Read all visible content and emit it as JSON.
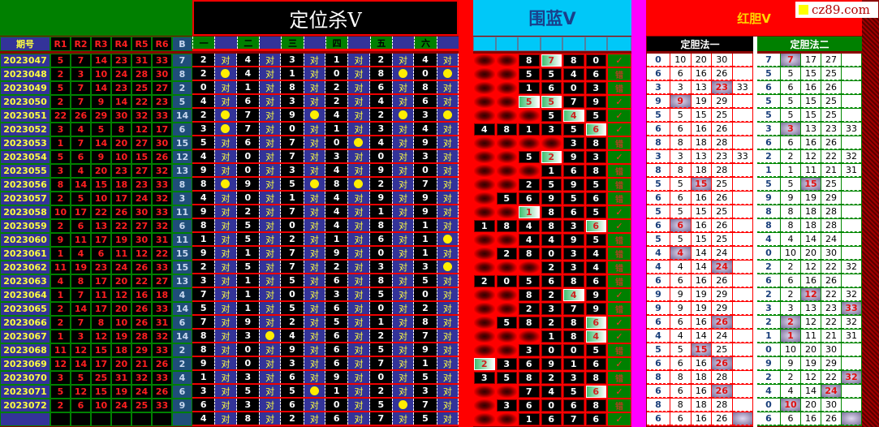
{
  "logo": {
    "text": "cz89.com"
  },
  "sections": {
    "kill_title": "定位杀V",
    "blue_title": "围蓝V",
    "red_title": "红胆V",
    "red_method1": "定胆法一",
    "red_method2": "定胆法二"
  },
  "headers": {
    "left": [
      "期号",
      "R1",
      "R2",
      "R3",
      "R4",
      "R5",
      "R6",
      "B"
    ],
    "kill": [
      "一",
      "",
      "二",
      "",
      "三",
      "",
      "四",
      "",
      "五",
      "",
      "六",
      ""
    ]
  },
  "colors": {
    "period_bg": "#333399",
    "period_text": "#ffff40",
    "red_number": "#ff2020",
    "kill_bg": "#000000",
    "mark_bg": "#333399",
    "blue_header": "#00c8f8",
    "hit_dot": "#ffee00",
    "result_bg": "#008000"
  },
  "rows": [
    {
      "p": "2023047",
      "r": [
        5,
        7,
        14,
        23,
        31,
        33
      ],
      "b": 7,
      "k": [
        2,
        4,
        3,
        1,
        2,
        4
      ],
      "m": [
        "对",
        "对",
        "对",
        "对",
        "对",
        "对"
      ],
      "blue": [
        null,
        null,
        8,
        7,
        8,
        0
      ],
      "bh": 3,
      "res": "✓",
      "d1": 0,
      "n1": [
        10,
        20,
        30,
        null
      ],
      "h1": -1,
      "d2": 7,
      "n2": [
        7,
        17,
        27,
        null
      ],
      "h2": 0
    },
    {
      "p": "2023048",
      "r": [
        2,
        3,
        10,
        24,
        28,
        30
      ],
      "b": 8,
      "k": [
        2,
        4,
        1,
        0,
        8,
        0
      ],
      "m": [
        "●",
        "对",
        "对",
        "对",
        "●",
        "●"
      ],
      "blue": [
        null,
        null,
        5,
        5,
        4,
        6
      ],
      "bh": -1,
      "res": "错",
      "d1": 6,
      "n1": [
        6,
        16,
        26,
        null
      ],
      "h1": -1,
      "d2": 5,
      "n2": [
        5,
        15,
        25,
        null
      ],
      "h2": -1
    },
    {
      "p": "2023049",
      "r": [
        5,
        7,
        14,
        23,
        25,
        27
      ],
      "b": 2,
      "k": [
        0,
        1,
        8,
        2,
        6,
        8
      ],
      "m": [
        "对",
        "对",
        "对",
        "对",
        "对",
        "对"
      ],
      "blue": [
        null,
        null,
        1,
        6,
        0,
        3
      ],
      "bh": -1,
      "res": "错",
      "d1": 3,
      "n1": [
        3,
        13,
        23,
        33
      ],
      "h1": 2,
      "d2": 6,
      "n2": [
        6,
        16,
        26,
        null
      ],
      "h2": -1
    },
    {
      "p": "2023050",
      "r": [
        2,
        7,
        9,
        14,
        22,
        23
      ],
      "b": 5,
      "k": [
        4,
        6,
        3,
        2,
        4,
        6
      ],
      "m": [
        "对",
        "对",
        "对",
        "对",
        "对",
        "对"
      ],
      "blue": [
        null,
        null,
        5,
        5,
        7,
        9
      ],
      "bh": [
        2,
        3
      ],
      "res": "✓",
      "d1": 9,
      "n1": [
        9,
        19,
        29,
        null
      ],
      "h1": 0,
      "d2": 5,
      "n2": [
        5,
        15,
        25,
        null
      ],
      "h2": -1
    },
    {
      "p": "2023051",
      "r": [
        22,
        26,
        29,
        30,
        32,
        33
      ],
      "b": 14,
      "k": [
        2,
        7,
        9,
        4,
        2,
        3
      ],
      "m": [
        "●",
        "对",
        "●",
        "对",
        "●",
        "●"
      ],
      "blue": [
        null,
        null,
        null,
        5,
        4,
        5
      ],
      "bh": 4,
      "res": "✓",
      "d1": 5,
      "n1": [
        5,
        15,
        25,
        null
      ],
      "h1": -1,
      "d2": 5,
      "n2": [
        5,
        15,
        25,
        null
      ],
      "h2": -1
    },
    {
      "p": "2023052",
      "r": [
        3,
        4,
        5,
        8,
        12,
        17
      ],
      "b": 6,
      "k": [
        3,
        7,
        0,
        1,
        3,
        4
      ],
      "m": [
        "●",
        "对",
        "对",
        "对",
        "对",
        "对"
      ],
      "blue": [
        4,
        8,
        1,
        3,
        5,
        6
      ],
      "bh": 5,
      "res": "✓",
      "d1": 6,
      "n1": [
        6,
        16,
        26,
        null
      ],
      "h1": -1,
      "d2": 3,
      "n2": [
        3,
        13,
        23,
        33
      ],
      "h2": 0
    },
    {
      "p": "2023053",
      "r": [
        1,
        7,
        14,
        20,
        27,
        30
      ],
      "b": 15,
      "k": [
        5,
        6,
        7,
        0,
        4,
        9
      ],
      "m": [
        "对",
        "对",
        "对",
        "●",
        "对",
        "对"
      ],
      "blue": [
        null,
        null,
        null,
        null,
        3,
        8
      ],
      "bh": -1,
      "res": "错",
      "d1": 8,
      "n1": [
        8,
        18,
        28,
        null
      ],
      "h1": -1,
      "d2": 6,
      "n2": [
        6,
        16,
        26,
        null
      ],
      "h2": -1
    },
    {
      "p": "2023054",
      "r": [
        5,
        6,
        9,
        10,
        15,
        26
      ],
      "b": 12,
      "k": [
        4,
        0,
        7,
        3,
        0,
        3
      ],
      "m": [
        "对",
        "对",
        "对",
        "对",
        "对",
        "对"
      ],
      "blue": [
        null,
        null,
        5,
        2,
        9,
        3
      ],
      "bh": 3,
      "res": "✓",
      "d1": 3,
      "n1": [
        3,
        13,
        23,
        33
      ],
      "h1": -1,
      "d2": 2,
      "n2": [
        2,
        12,
        22,
        32
      ],
      "h2": -1
    },
    {
      "p": "2023055",
      "r": [
        3,
        4,
        20,
        23,
        27,
        32
      ],
      "b": 13,
      "k": [
        9,
        0,
        3,
        4,
        9,
        0
      ],
      "m": [
        "对",
        "对",
        "对",
        "对",
        "对",
        "对"
      ],
      "blue": [
        null,
        null,
        null,
        1,
        6,
        8
      ],
      "bh": -1,
      "res": "错",
      "d1": 8,
      "n1": [
        8,
        18,
        28,
        null
      ],
      "h1": -1,
      "d2": 1,
      "n2": [
        1,
        11,
        21,
        31
      ],
      "h2": -1
    },
    {
      "p": "2023056",
      "r": [
        8,
        14,
        15,
        18,
        23,
        33
      ],
      "b": 8,
      "k": [
        8,
        9,
        5,
        8,
        2,
        7
      ],
      "m": [
        "●",
        "对",
        "●",
        "●",
        "对",
        "对"
      ],
      "blue": [
        null,
        null,
        2,
        5,
        9,
        5
      ],
      "bh": -1,
      "res": "错",
      "d1": 5,
      "n1": [
        5,
        15,
        25,
        null
      ],
      "h1": 1,
      "d2": 5,
      "n2": [
        5,
        15,
        25,
        null
      ],
      "h2": 1
    },
    {
      "p": "2023057",
      "r": [
        2,
        5,
        10,
        17,
        24,
        32
      ],
      "b": 3,
      "k": [
        4,
        0,
        1,
        4,
        9,
        9
      ],
      "m": [
        "对",
        "对",
        "对",
        "对",
        "对",
        "对"
      ],
      "blue": [
        null,
        5,
        6,
        9,
        5,
        6
      ],
      "bh": -1,
      "res": "错",
      "d1": 6,
      "n1": [
        6,
        16,
        26,
        null
      ],
      "h1": -1,
      "d2": 9,
      "n2": [
        9,
        19,
        29,
        null
      ],
      "h2": -1
    },
    {
      "p": "2023058",
      "r": [
        10,
        17,
        22,
        26,
        30,
        33
      ],
      "b": 11,
      "k": [
        9,
        2,
        7,
        4,
        1,
        9
      ],
      "m": [
        "对",
        "对",
        "对",
        "对",
        "对",
        "对"
      ],
      "blue": [
        null,
        null,
        1,
        8,
        6,
        5
      ],
      "bh": 2,
      "res": "✓",
      "d1": 5,
      "n1": [
        5,
        15,
        25,
        null
      ],
      "h1": -1,
      "d2": 8,
      "n2": [
        8,
        18,
        28,
        null
      ],
      "h2": -1
    },
    {
      "p": "2023059",
      "r": [
        2,
        6,
        13,
        22,
        27,
        32
      ],
      "b": 6,
      "k": [
        8,
        5,
        0,
        4,
        8,
        1
      ],
      "m": [
        "对",
        "对",
        "对",
        "对",
        "对",
        "对"
      ],
      "blue": [
        1,
        8,
        4,
        8,
        3,
        6
      ],
      "bh": 5,
      "res": "✓",
      "d1": 6,
      "n1": [
        6,
        16,
        26,
        null
      ],
      "h1": 0,
      "d2": 8,
      "n2": [
        8,
        18,
        28,
        null
      ],
      "h2": -1
    },
    {
      "p": "2023060",
      "r": [
        9,
        11,
        17,
        19,
        30,
        31
      ],
      "b": 11,
      "k": [
        1,
        5,
        2,
        1,
        6,
        1
      ],
      "m": [
        "对",
        "对",
        "对",
        "对",
        "对",
        "●"
      ],
      "blue": [
        null,
        null,
        4,
        4,
        9,
        5
      ],
      "bh": -1,
      "res": "错",
      "d1": 5,
      "n1": [
        5,
        15,
        25,
        null
      ],
      "h1": -1,
      "d2": 4,
      "n2": [
        4,
        14,
        24,
        null
      ],
      "h2": -1
    },
    {
      "p": "2023061",
      "r": [
        1,
        4,
        6,
        11,
        12,
        22
      ],
      "b": 15,
      "k": [
        9,
        1,
        7,
        9,
        0,
        1
      ],
      "m": [
        "对",
        "对",
        "对",
        "对",
        "对",
        "对"
      ],
      "blue": [
        null,
        2,
        8,
        0,
        3,
        4
      ],
      "bh": -1,
      "res": "错",
      "d1": 4,
      "n1": [
        4,
        14,
        24,
        null
      ],
      "h1": 0,
      "d2": 0,
      "n2": [
        10,
        20,
        30,
        null
      ],
      "h2": -1
    },
    {
      "p": "2023062",
      "r": [
        11,
        19,
        23,
        24,
        26,
        33
      ],
      "b": 15,
      "k": [
        2,
        5,
        7,
        2,
        3,
        3
      ],
      "m": [
        "对",
        "对",
        "对",
        "对",
        "对",
        "●"
      ],
      "blue": [
        null,
        null,
        null,
        2,
        3,
        4
      ],
      "bh": -1,
      "res": "错",
      "d1": 4,
      "n1": [
        4,
        14,
        24,
        null
      ],
      "h1": 2,
      "d2": 2,
      "n2": [
        2,
        12,
        22,
        32
      ],
      "h2": -1
    },
    {
      "p": "2023063",
      "r": [
        4,
        8,
        17,
        20,
        22,
        27
      ],
      "b": 13,
      "k": [
        3,
        1,
        5,
        6,
        8,
        5
      ],
      "m": [
        "对",
        "对",
        "对",
        "对",
        "对",
        "对"
      ],
      "blue": [
        2,
        0,
        5,
        6,
        8,
        6
      ],
      "bh": -1,
      "res": "错",
      "d1": 6,
      "n1": [
        6,
        16,
        26,
        null
      ],
      "h1": -1,
      "d2": 6,
      "n2": [
        6,
        16,
        26,
        null
      ],
      "h2": -1
    },
    {
      "p": "2023064",
      "r": [
        1,
        7,
        11,
        12,
        16,
        18
      ],
      "b": 4,
      "k": [
        7,
        1,
        0,
        3,
        5,
        0
      ],
      "m": [
        "对",
        "对",
        "对",
        "对",
        "对",
        "对"
      ],
      "blue": [
        null,
        null,
        8,
        2,
        4,
        9
      ],
      "bh": 4,
      "res": "✓",
      "d1": 9,
      "n1": [
        9,
        19,
        29,
        null
      ],
      "h1": -1,
      "d2": 2,
      "n2": [
        2,
        12,
        22,
        32
      ],
      "h2": 1
    },
    {
      "p": "2023065",
      "r": [
        2,
        14,
        17,
        20,
        26,
        33
      ],
      "b": 14,
      "k": [
        5,
        1,
        5,
        6,
        0,
        2
      ],
      "m": [
        "对",
        "对",
        "对",
        "对",
        "对",
        "对"
      ],
      "blue": [
        null,
        null,
        2,
        3,
        7,
        9
      ],
      "bh": -1,
      "res": "错",
      "d1": 9,
      "n1": [
        9,
        19,
        29,
        null
      ],
      "h1": -1,
      "d2": 3,
      "n2": [
        3,
        13,
        23,
        33
      ],
      "h2": 3
    },
    {
      "p": "2023066",
      "r": [
        2,
        7,
        8,
        10,
        26,
        31
      ],
      "b": 6,
      "k": [
        7,
        9,
        2,
        5,
        1,
        8
      ],
      "m": [
        "对",
        "对",
        "对",
        "对",
        "对",
        "对"
      ],
      "blue": [
        null,
        5,
        8,
        2,
        8,
        6
      ],
      "bh": 5,
      "res": "✓",
      "d1": 6,
      "n1": [
        6,
        16,
        26,
        null
      ],
      "h1": 2,
      "d2": 2,
      "n2": [
        2,
        12,
        22,
        32
      ],
      "h2": 0
    },
    {
      "p": "2023067",
      "r": [
        1,
        3,
        12,
        19,
        28,
        32
      ],
      "b": 14,
      "k": [
        8,
        3,
        4,
        6,
        2,
        7
      ],
      "m": [
        "对",
        "●",
        "对",
        "对",
        "对",
        "对"
      ],
      "blue": [
        null,
        null,
        null,
        1,
        8,
        4
      ],
      "bh": 5,
      "res": "✓",
      "d1": 4,
      "n1": [
        4,
        14,
        24,
        null
      ],
      "h1": -1,
      "d2": 1,
      "n2": [
        1,
        11,
        21,
        31
      ],
      "h2": 0
    },
    {
      "p": "2023068",
      "r": [
        11,
        12,
        15,
        18,
        29,
        33
      ],
      "b": 2,
      "k": [
        8,
        0,
        9,
        6,
        5,
        9
      ],
      "m": [
        "对",
        "对",
        "对",
        "对",
        "对",
        "对"
      ],
      "blue": [
        null,
        null,
        3,
        0,
        0,
        5
      ],
      "bh": -1,
      "res": "错",
      "d1": 5,
      "n1": [
        5,
        15,
        25,
        null
      ],
      "h1": 1,
      "d2": 0,
      "n2": [
        10,
        20,
        30,
        null
      ],
      "h2": -1
    },
    {
      "p": "2023069",
      "r": [
        12,
        14,
        17,
        20,
        21,
        26
      ],
      "b": 2,
      "k": [
        9,
        0,
        3,
        6,
        7,
        1
      ],
      "m": [
        "对",
        "对",
        "对",
        "对",
        "对",
        "对"
      ],
      "blue": [
        2,
        3,
        6,
        9,
        1,
        6
      ],
      "bh": 0,
      "res": "✓",
      "d1": 6,
      "n1": [
        6,
        16,
        26,
        null
      ],
      "h1": 2,
      "d2": 9,
      "n2": [
        9,
        19,
        29,
        null
      ],
      "h2": -1
    },
    {
      "p": "2023070",
      "r": [
        3,
        5,
        25,
        31,
        32,
        33
      ],
      "b": 4,
      "k": [
        1,
        3,
        6,
        9,
        0,
        5
      ],
      "m": [
        "对",
        "对",
        "对",
        "对",
        "对",
        "对"
      ],
      "blue": [
        3,
        5,
        8,
        2,
        3,
        8
      ],
      "bh": -1,
      "res": "错",
      "d1": 8,
      "n1": [
        8,
        18,
        28,
        null
      ],
      "h1": -1,
      "d2": 2,
      "n2": [
        2,
        12,
        22,
        32
      ],
      "h2": 3
    },
    {
      "p": "2023071",
      "r": [
        5,
        12,
        15,
        19,
        24,
        26
      ],
      "b": 6,
      "k": [
        3,
        5,
        5,
        1,
        2,
        3
      ],
      "m": [
        "对",
        "对",
        "●",
        "对",
        "对",
        "对"
      ],
      "blue": [
        null,
        null,
        7,
        4,
        5,
        6
      ],
      "bh": 5,
      "res": "✓",
      "d1": 6,
      "n1": [
        6,
        16,
        26,
        null
      ],
      "h1": 2,
      "d2": 4,
      "n2": [
        4,
        14,
        24,
        null
      ],
      "h2": 2
    },
    {
      "p": "2023072",
      "r": [
        2,
        6,
        10,
        24,
        25,
        33
      ],
      "b": 9,
      "k": [
        6,
        3,
        6,
        0,
        5,
        7
      ],
      "m": [
        "对",
        "对",
        "对",
        "对",
        "●",
        "对"
      ],
      "blue": [
        null,
        3,
        6,
        0,
        6,
        8
      ],
      "bh": -1,
      "res": "错",
      "d1": 8,
      "n1": [
        8,
        18,
        28,
        null
      ],
      "h1": -1,
      "d2": 0,
      "n2": [
        10,
        20,
        30,
        null
      ],
      "h2": 0
    },
    {
      "p": "",
      "r": [
        null,
        null,
        null,
        null,
        null,
        null
      ],
      "b": null,
      "k": [
        4,
        8,
        2,
        6,
        7,
        5
      ],
      "m": [
        "对",
        "对",
        "对",
        "对",
        "对",
        "对"
      ],
      "blue": [
        null,
        null,
        1,
        6,
        7,
        6
      ],
      "bh": -1,
      "res": "✓",
      "d1": 6,
      "n1": [
        6,
        16,
        26,
        null
      ],
      "h1": 3,
      "d2": 6,
      "n2": [
        6,
        16,
        26,
        null
      ],
      "h2": 3
    }
  ]
}
